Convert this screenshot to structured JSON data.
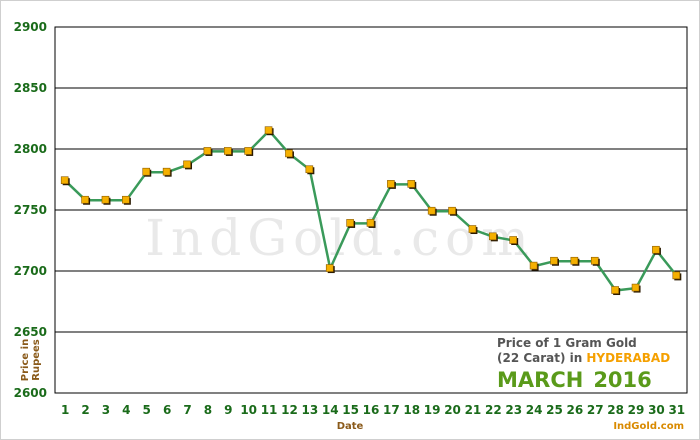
{
  "chart_data": {
    "type": "line",
    "xlabel": "Date",
    "ylabel_line1": "Price in",
    "ylabel_line2": "Rupees",
    "ylim": [
      2600,
      2900
    ],
    "yticks": [
      "2600",
      "2650",
      "2700",
      "2750",
      "2800",
      "2850",
      "2900"
    ],
    "grid": "horizontal",
    "categories": [
      "1",
      "2",
      "3",
      "4",
      "5",
      "6",
      "7",
      "8",
      "9",
      "10",
      "11",
      "12",
      "13",
      "14",
      "15",
      "16",
      "17",
      "18",
      "19",
      "20",
      "21",
      "22",
      "23",
      "24",
      "25",
      "26",
      "27",
      "28",
      "29",
      "30",
      "31"
    ],
    "series": [
      {
        "values": [
          2774,
          2758,
          2758,
          2758,
          2781,
          2781,
          2787,
          2798,
          2798,
          2798,
          2815,
          2796,
          2783,
          2702,
          2739,
          2739,
          2771,
          2771,
          2749,
          2749,
          2734,
          2728,
          2725,
          2704,
          2708,
          2708,
          2708,
          2684,
          2686,
          2717,
          2696
        ],
        "color": "#3a9a5a",
        "marker_color": "#f5b000"
      }
    ],
    "watermark": "IndGold.com",
    "info": {
      "line1": "Price of 1 Gram Gold",
      "line2_prefix": "(22 Carat) in",
      "city": "HYDERABAD",
      "month": "MARCH",
      "year": "2016",
      "site": "IndGold.com"
    },
    "colors": {
      "tick_text": "#1a6b1a",
      "axis_title": "#8a5a1a",
      "city": "#f5a000",
      "month": "#5a9a1a",
      "line": "#3a9a5a",
      "marker": "#f5b000"
    }
  }
}
